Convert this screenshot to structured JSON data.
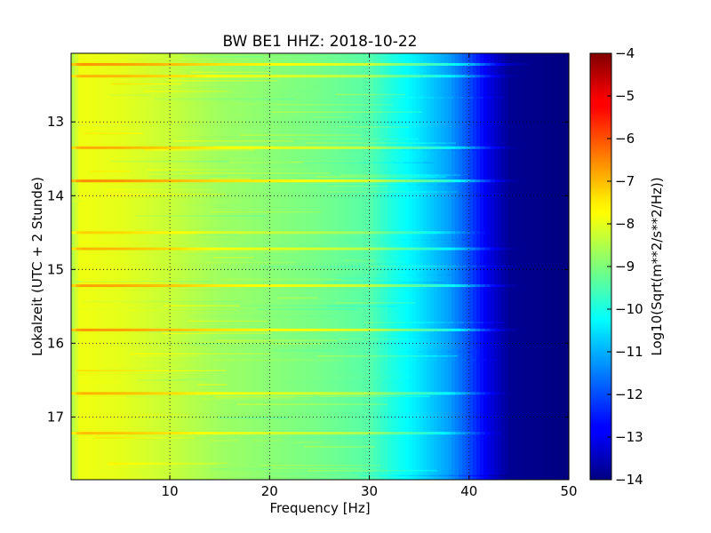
{
  "chart_data": {
    "type": "heatmap",
    "title": "BW BE1 HHZ: 2018-10-22",
    "xlabel": "Frequency [Hz]",
    "ylabel": "Lokalzeit (UTC + 2 Stunde)",
    "xlim": [
      0.1,
      50
    ],
    "ylim": [
      17.85,
      12.07
    ],
    "x_inverted": false,
    "y_inverted": true,
    "xticks": [
      10,
      20,
      30,
      40,
      50
    ],
    "yticks": [
      13,
      14,
      15,
      16,
      17
    ],
    "grid": true,
    "colorbar": {
      "label": "Log10(Sqrt(m**2/s**2/Hz))",
      "range": [
        -14,
        -4
      ],
      "ticks": [
        -14,
        -13,
        -12,
        -11,
        -10,
        -9,
        -8,
        -7,
        -6,
        -5,
        -4
      ],
      "colormap": "jet"
    },
    "baseline_profile": [
      {
        "freq": 0.1,
        "value": -8.6
      },
      {
        "freq": 1,
        "value": -7.9
      },
      {
        "freq": 5,
        "value": -8.0
      },
      {
        "freq": 10,
        "value": -8.3
      },
      {
        "freq": 15,
        "value": -8.7
      },
      {
        "freq": 20,
        "value": -8.9
      },
      {
        "freq": 25,
        "value": -9.1
      },
      {
        "freq": 30,
        "value": -9.4
      },
      {
        "freq": 32,
        "value": -9.9
      },
      {
        "freq": 35,
        "value": -10.5
      },
      {
        "freq": 38,
        "value": -11.2
      },
      {
        "freq": 40,
        "value": -12.0
      },
      {
        "freq": 42,
        "value": -13.0
      },
      {
        "freq": 44,
        "value": -13.8
      },
      {
        "freq": 50,
        "value": -14.0
      }
    ],
    "event_bands": [
      {
        "time": 12.22,
        "fmax": 46,
        "value_offset": 1.2
      },
      {
        "time": 12.38,
        "fmax": 45,
        "value_offset": 0.9
      },
      {
        "time": 13.35,
        "fmax": 45,
        "value_offset": 1.0
      },
      {
        "time": 13.8,
        "fmax": 45,
        "value_offset": 1.3
      },
      {
        "time": 14.5,
        "fmax": 42,
        "value_offset": 0.6
      },
      {
        "time": 14.72,
        "fmax": 45,
        "value_offset": 0.9
      },
      {
        "time": 15.22,
        "fmax": 45,
        "value_offset": 1.1
      },
      {
        "time": 15.82,
        "fmax": 45,
        "value_offset": 1.2
      },
      {
        "time": 16.68,
        "fmax": 44,
        "value_offset": 0.9
      },
      {
        "time": 17.22,
        "fmax": 43,
        "value_offset": 0.8
      }
    ]
  }
}
